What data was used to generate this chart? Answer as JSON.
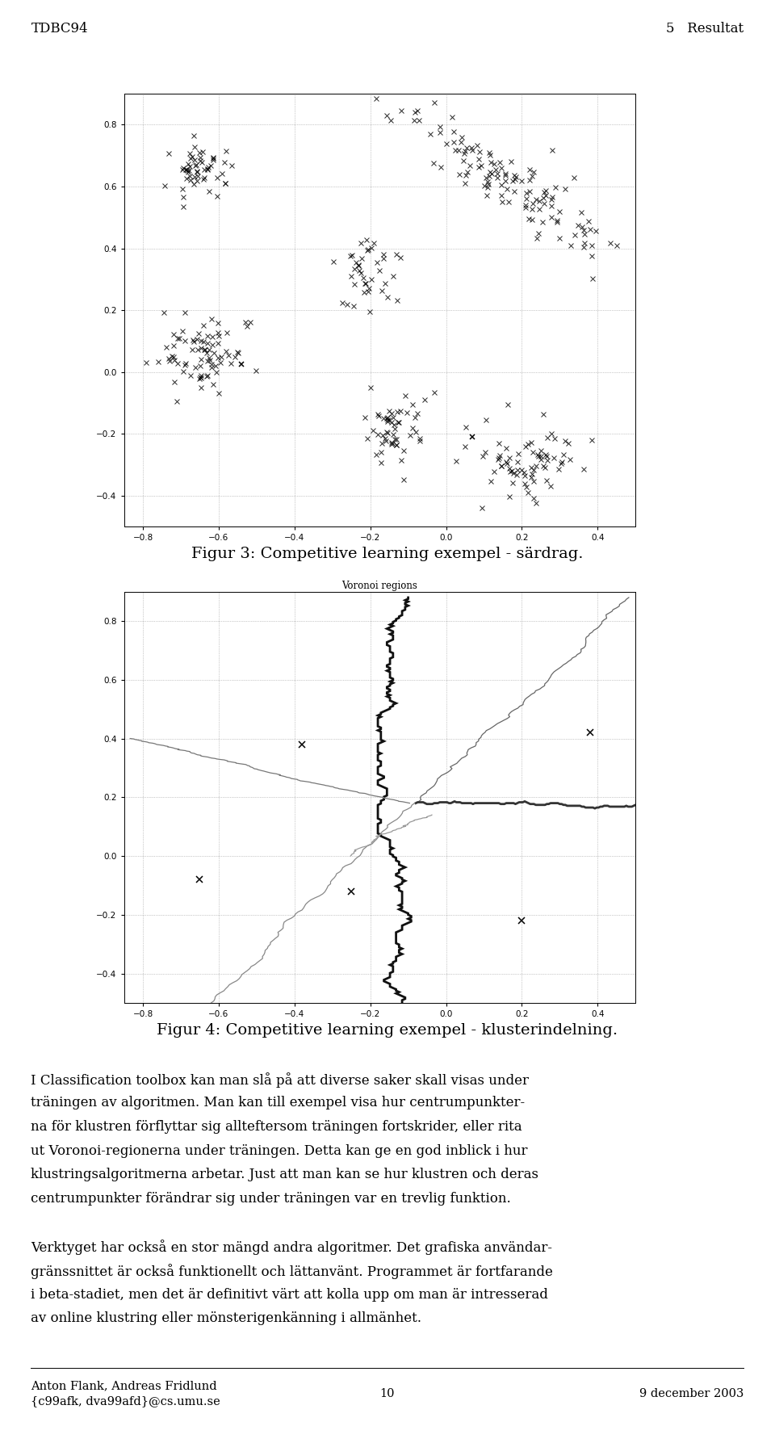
{
  "page_width": 9.6,
  "page_height": 17.87,
  "background_color": "#ffffff",
  "header_left": "TDBC94",
  "header_right": "5   Resultat",
  "header_fontsize": 12,
  "fig3_caption": "Figur 3: Competitive learning exempel - särdrag.",
  "fig4_caption": "Figur 4: Competitive learning exempel - klusterindelning.",
  "caption_fontsize": 14,
  "fig3_xlim": [
    -0.85,
    0.5
  ],
  "fig3_ylim": [
    -0.5,
    0.9
  ],
  "fig3_xticks": [
    -0.8,
    -0.6,
    -0.4,
    -0.2,
    0,
    0.2,
    0.4
  ],
  "fig3_yticks": [
    -0.4,
    -0.2,
    0,
    0.2,
    0.4,
    0.6,
    0.8
  ],
  "fig4_xlim": [
    -0.85,
    0.5
  ],
  "fig4_ylim": [
    -0.5,
    0.9
  ],
  "fig4_xticks": [
    -0.8,
    -0.6,
    -0.4,
    -0.2,
    0,
    0.2,
    0.4
  ],
  "fig4_yticks": [
    -0.4,
    -0.2,
    0,
    0.2,
    0.4,
    0.6,
    0.8
  ],
  "fig4_title": "Voronoi regions",
  "body_fontsize": 12,
  "footer_left": "Anton Flank, Andreas Fridlund\n{c99afk, dva99afd}@cs.umu.se",
  "footer_center": "10",
  "footer_right": "9 december 2003",
  "footer_fontsize": 10.5
}
